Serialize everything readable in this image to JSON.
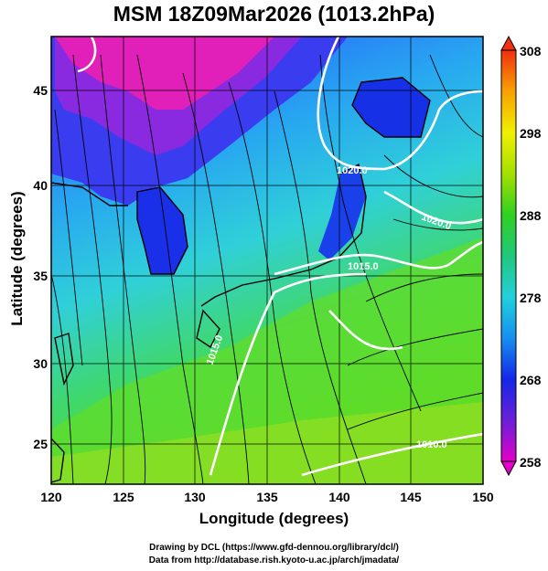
{
  "title": "MSM 18Z09Mar2026 (1013.2hPa)",
  "xaxis": {
    "label": "Longitude (degrees)",
    "ticks": [
      "120",
      "125",
      "130",
      "135",
      "140",
      "145",
      "150"
    ]
  },
  "yaxis": {
    "label": "Latitude  (degrees)",
    "ticks": [
      "25",
      "30",
      "35",
      "40",
      "45"
    ]
  },
  "colorbar": {
    "ticks": [
      "308",
      "298",
      "288",
      "278",
      "268",
      "258"
    ],
    "units": ""
  },
  "contours": [
    {
      "label": "1020.0"
    },
    {
      "label": "1020.0"
    },
    {
      "label": "1015.0"
    },
    {
      "label": "1015.0"
    },
    {
      "label": "1010.0"
    }
  ],
  "credits": {
    "line1": "Drawing by DCL (https://www.gfd-dennou.org/library/dcl/)",
    "line2": "Data from http://database.rish.kyoto-u.ac.jp/arch/jmadata/"
  },
  "map_data": {
    "lon_range": [
      120,
      150
    ],
    "lat_range": [
      22.5,
      47.5
    ],
    "colorbar_range": [
      258,
      308
    ],
    "grid": true,
    "fields": [
      "temperature (color shading)",
      "sea level pressure (white contours)",
      "wind (streamlines)"
    ]
  },
  "colors": {
    "cold": "#ff00cc",
    "cool": "#1f3cff",
    "mid": "#35c8e8",
    "warm": "#4fdc2f",
    "hot": "#e8e800"
  }
}
